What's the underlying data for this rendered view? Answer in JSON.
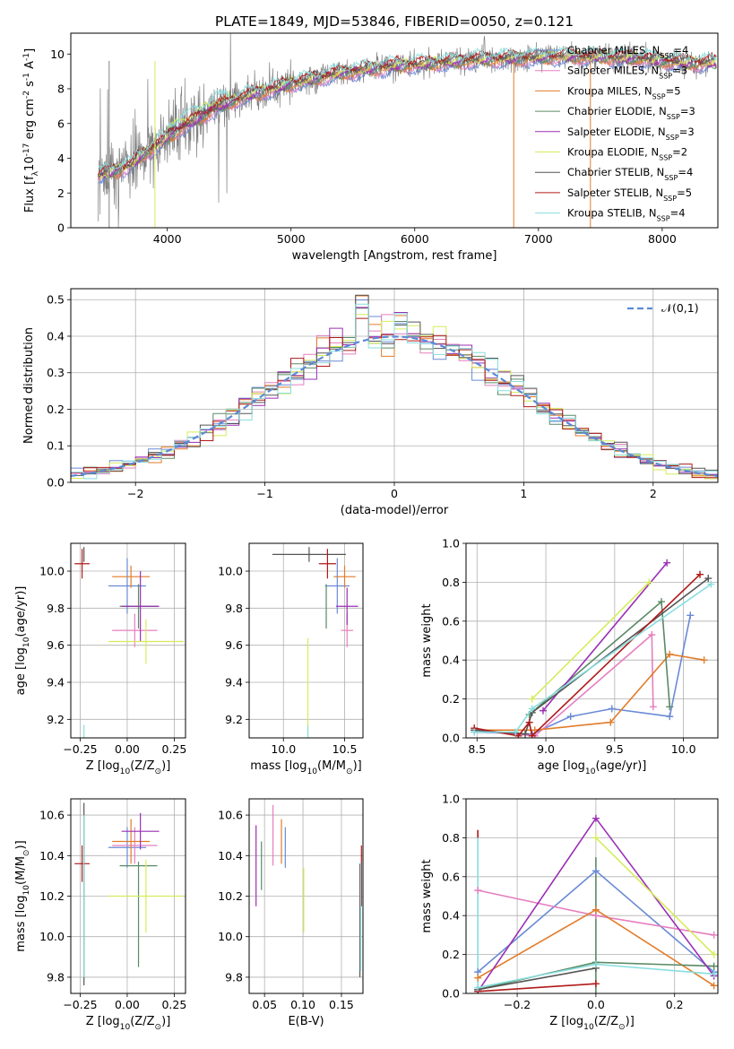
{
  "figure": {
    "title": "PLATE=1849, MJD=53846, FIBERID=0050, z=0.121"
  },
  "colors": {
    "chabrier_miles": "#6a8ad6",
    "salpeter_miles": "#e57fbf",
    "kroupa_miles": "#e27c2a",
    "chabrier_elodie": "#5a8a65",
    "salpeter_elodie": "#9a2fb4",
    "kroupa_elodie": "#d6ec5a",
    "chabrier_stelib": "#555555",
    "salpeter_stelib": "#b01a1a",
    "kroupa_stelib": "#88dede",
    "spectrum": "#808080",
    "gaussian": "#5b8ad6",
    "grid": "#b0b0b0"
  },
  "chart_data": [
    {
      "id": "spectrum",
      "type": "line",
      "xlabel": "wavelength [Angstrom, rest frame]",
      "ylabel": "Flux [f$_\\lambda$10$^{-17}$ erg cm$^{-2}$ s$^{-1}$ A$^{-1}$]",
      "xlim": [
        3220,
        8450
      ],
      "ylim": [
        0,
        11.2
      ],
      "xticks": [
        4000,
        5000,
        6000,
        7000,
        8000
      ],
      "yticks": [
        0,
        2,
        4,
        6,
        8,
        10
      ],
      "grid": false,
      "legend_position": "right",
      "continuum": {
        "x": [
          3440,
          3500,
          3600,
          3700,
          3800,
          3900,
          4000,
          4100,
          4200,
          4300,
          4400,
          4500,
          4600,
          4700,
          4800,
          4900,
          5000,
          5200,
          5400,
          5600,
          5800,
          6000,
          6200,
          6400,
          6600,
          6800,
          7000,
          7200,
          7400,
          7600,
          7800,
          8000,
          8200,
          8450
        ],
        "y": [
          3.0,
          3.1,
          3.3,
          3.6,
          4.2,
          4.7,
          5.2,
          5.7,
          6.1,
          6.5,
          6.9,
          7.2,
          7.5,
          7.7,
          7.9,
          8.1,
          8.3,
          8.6,
          8.9,
          9.1,
          9.3,
          9.4,
          9.5,
          9.6,
          9.7,
          9.75,
          9.8,
          9.85,
          9.85,
          9.8,
          9.75,
          9.6,
          9.5,
          9.5
        ]
      },
      "legend": [
        {
          "label": "Chabrier MILES, N$_{SSP}$=4",
          "color_key": "chabrier_miles"
        },
        {
          "label": "Salpeter MILES, N$_{SSP}$=3",
          "color_key": "salpeter_miles"
        },
        {
          "label": "Kroupa MILES, N$_{SSP}$=5",
          "color_key": "kroupa_miles"
        },
        {
          "label": "Chabrier ELODIE, N$_{SSP}$=3",
          "color_key": "chabrier_elodie"
        },
        {
          "label": "Salpeter ELODIE, N$_{SSP}$=3",
          "color_key": "salpeter_elodie"
        },
        {
          "label": "Kroupa ELODIE, N$_{SSP}$=2",
          "color_key": "kroupa_elodie"
        },
        {
          "label": "Chabrier STELIB, N$_{SSP}$=4",
          "color_key": "chabrier_stelib"
        },
        {
          "label": "Salpeter STELIB, N$_{SSP}$=5",
          "color_key": "salpeter_stelib"
        },
        {
          "label": "Kroupa STELIB, N$_{SSP}$=4",
          "color_key": "kroupa_stelib"
        }
      ]
    },
    {
      "id": "residuals",
      "type": "line",
      "xlabel": "(data-model)/error",
      "ylabel": "Normed distribution",
      "xlim": [
        -2.5,
        2.5
      ],
      "ylim": [
        0,
        0.53
      ],
      "xticks": [
        -2,
        -1,
        0,
        1,
        2
      ],
      "yticks": [
        0.0,
        0.1,
        0.2,
        0.3,
        0.4,
        0.5
      ],
      "grid": true,
      "legend_position": "top-right",
      "gaussian_label": "$\\mathcal{N}(0,1)$",
      "bin_edges_start": -2.5,
      "bin_width": 0.1
    },
    {
      "id": "age_vs_z",
      "type": "scatter",
      "xlabel": "Z [log$_{10}$(Z/Z$_\\odot$)]",
      "ylabel": "age  [log$_{10}$(age/yr)]",
      "xlim": [
        -0.3,
        0.31
      ],
      "ylim": [
        9.1,
        10.15
      ],
      "xticks": [
        -0.25,
        0.0,
        0.25
      ],
      "yticks": [
        9.2,
        9.4,
        9.6,
        9.8,
        10.0
      ],
      "grid": true,
      "points": [
        {
          "color_key": "chabrier_miles",
          "x": 0.0,
          "y": 9.92,
          "xerr": 0.1,
          "yerr": 0.15
        },
        {
          "color_key": "salpeter_miles",
          "x": 0.04,
          "y": 9.68,
          "xerr": 0.12,
          "yerr": 0.09
        },
        {
          "color_key": "kroupa_miles",
          "x": 0.02,
          "y": 9.97,
          "xerr": 0.1,
          "yerr": 0.06
        },
        {
          "color_key": "chabrier_elodie",
          "x": 0.06,
          "y": 9.81,
          "xerr": 0.1,
          "yerr": 0.12
        },
        {
          "color_key": "salpeter_elodie",
          "x": 0.07,
          "y": 9.81,
          "xerr": 0.1,
          "yerr": 0.19
        },
        {
          "color_key": "kroupa_elodie",
          "x": 0.1,
          "y": 9.62,
          "xerr": 0.2,
          "yerr": 0.12
        },
        {
          "color_key": "chabrier_stelib",
          "x": -0.23,
          "y": 10.09,
          "xerr": 0.0,
          "yerr": 0.04
        },
        {
          "color_key": "salpeter_stelib",
          "x": -0.24,
          "y": 10.04,
          "xerr": 0.04,
          "yerr": 0.08
        },
        {
          "color_key": "kroupa_stelib",
          "x": -0.23,
          "y": 9.15,
          "xerr": 0.0,
          "yerr": 0.0
        }
      ]
    },
    {
      "id": "age_vs_mass",
      "type": "scatter",
      "xlabel": "mass [log$_{10}$(M/M$_\\odot$)]",
      "ylabel": "",
      "xlim": [
        9.72,
        10.65
      ],
      "ylim": [
        9.1,
        10.15
      ],
      "xticks": [
        10.0,
        10.5
      ],
      "yticks": [
        9.2,
        9.4,
        9.6,
        9.8,
        10.0
      ],
      "grid": true,
      "points": [
        {
          "color_key": "chabrier_miles",
          "x": 10.44,
          "y": 9.92,
          "xerr": 0.1,
          "yerr": 0.15
        },
        {
          "color_key": "salpeter_miles",
          "x": 10.52,
          "y": 9.68,
          "xerr": 0.05,
          "yerr": 0.09
        },
        {
          "color_key": "kroupa_miles",
          "x": 10.5,
          "y": 9.97,
          "xerr": 0.09,
          "yerr": 0.06
        },
        {
          "color_key": "chabrier_elodie",
          "x": 10.35,
          "y": 9.81,
          "xerr": 0.0,
          "yerr": 0.12
        },
        {
          "color_key": "salpeter_elodie",
          "x": 10.52,
          "y": 9.81,
          "xerr": 0.09,
          "yerr": 0.1
        },
        {
          "color_key": "kroupa_elodie",
          "x": 10.2,
          "y": 9.62,
          "xerr": 0.0,
          "yerr": 0.0
        },
        {
          "color_key": "chabrier_stelib",
          "x": 10.21,
          "y": 10.09,
          "xerr": 0.3,
          "yerr": 0.04
        },
        {
          "color_key": "salpeter_stelib",
          "x": 10.36,
          "y": 10.04,
          "xerr": 0.07,
          "yerr": 0.08
        },
        {
          "color_key": "kroupa_stelib",
          "x": 10.2,
          "y": 9.15,
          "xerr": 0.0,
          "yerr": 0.0
        }
      ]
    },
    {
      "id": "weight_vs_age",
      "type": "line",
      "xlabel": "age  [log$_{10}$(age/yr)]",
      "ylabel": "mass weight",
      "xlim": [
        8.42,
        10.25
      ],
      "ylim": [
        0,
        1.0
      ],
      "xticks": [
        8.5,
        9.0,
        9.5,
        10.0
      ],
      "yticks": [
        0.0,
        0.2,
        0.4,
        0.6,
        0.8,
        1.0
      ],
      "grid": true,
      "series": [
        {
          "color_key": "chabrier_miles",
          "x": [
            8.48,
            8.9,
            9.18,
            9.48,
            9.9,
            10.05
          ],
          "y": [
            0.03,
            0.02,
            0.11,
            0.15,
            0.11,
            0.63
          ]
        },
        {
          "color_key": "salpeter_miles",
          "x": [
            8.48,
            8.92,
            9.77,
            9.78
          ],
          "y": [
            0.04,
            0.01,
            0.53,
            0.16
          ]
        },
        {
          "color_key": "kroupa_miles",
          "x": [
            8.48,
            8.92,
            9.47,
            9.9,
            10.15
          ],
          "y": [
            0.04,
            0.04,
            0.08,
            0.43,
            0.4
          ]
        },
        {
          "color_key": "chabrier_elodie",
          "x": [
            8.88,
            9.84,
            9.9
          ],
          "y": [
            0.12,
            0.7,
            0.16
          ]
        },
        {
          "color_key": "salpeter_elodie",
          "x": [
            8.98,
            9.88
          ],
          "y": [
            0.14,
            0.9
          ]
        },
        {
          "color_key": "kroupa_elodie",
          "x": [
            8.9,
            9.75
          ],
          "y": [
            0.2,
            0.8
          ]
        },
        {
          "color_key": "chabrier_stelib",
          "x": [
            8.48,
            8.85,
            8.9,
            10.18
          ],
          "y": [
            0.04,
            0.02,
            0.13,
            0.82
          ]
        },
        {
          "color_key": "salpeter_stelib",
          "x": [
            8.48,
            8.8,
            8.88,
            8.9,
            10.12
          ],
          "y": [
            0.05,
            0.01,
            0.08,
            0.01,
            0.84
          ]
        },
        {
          "color_key": "kroupa_stelib",
          "x": [
            8.48,
            8.78,
            8.9,
            10.2
          ],
          "y": [
            0.03,
            0.03,
            0.15,
            0.79
          ]
        }
      ]
    },
    {
      "id": "mass_vs_z",
      "type": "scatter",
      "xlabel": "Z [log$_{10}$(Z/Z$_\\odot$)]",
      "ylabel": "mass [log$_{10}$(M/M$_\\odot$)]",
      "xlim": [
        -0.3,
        0.31
      ],
      "ylim": [
        9.72,
        10.68
      ],
      "xticks": [
        -0.25,
        0.0,
        0.25
      ],
      "yticks": [
        9.8,
        10.0,
        10.2,
        10.4,
        10.6
      ],
      "grid": true,
      "points": [
        {
          "color_key": "chabrier_miles",
          "x": 0.0,
          "y": 10.44,
          "xerr": 0.1,
          "yerr": 0.1
        },
        {
          "color_key": "salpeter_miles",
          "x": 0.04,
          "y": 10.45,
          "xerr": 0.12,
          "yerr": 0.09
        },
        {
          "color_key": "kroupa_miles",
          "x": 0.02,
          "y": 10.47,
          "xerr": 0.1,
          "yerr": 0.11
        },
        {
          "color_key": "chabrier_elodie",
          "x": 0.06,
          "y": 10.35,
          "xerr": 0.1,
          "yerr": 0.0
        },
        {
          "color_key": "salpeter_elodie",
          "x": 0.07,
          "y": 10.52,
          "xerr": 0.1,
          "yerr": 0.09
        },
        {
          "color_key": "kroupa_elodie",
          "x": 0.1,
          "y": 10.2,
          "xerr": 0.2,
          "yerr": 0.18
        },
        {
          "color_key": "chabrier_stelib",
          "x": -0.23,
          "y": 10.21,
          "xerr": 0.0,
          "yerr": 0.45
        },
        {
          "color_key": "salpeter_stelib",
          "x": -0.24,
          "y": 10.36,
          "xerr": 0.04,
          "yerr": 0.09
        },
        {
          "color_key": "kroupa_stelib",
          "x": -0.23,
          "y": 10.2,
          "xerr": 0.0,
          "yerr": 0.4
        }
      ]
    },
    {
      "id": "mass_vs_ebv",
      "type": "scatter",
      "xlabel": "E(B-V)",
      "ylabel": "",
      "xlim": [
        0.03,
        0.178
      ],
      "ylim": [
        9.72,
        10.68
      ],
      "xticks": [
        0.05,
        0.1,
        0.15
      ],
      "yticks": [
        9.8,
        10.0,
        10.2,
        10.4,
        10.6
      ],
      "grid": true,
      "points": [
        {
          "color_key": "chabrier_miles",
          "x": 0.077,
          "y": 10.44,
          "xerr": 0.0,
          "yerr": 0.1
        },
        {
          "color_key": "salpeter_miles",
          "x": 0.061,
          "y": 10.5,
          "xerr": 0.0,
          "yerr": 0.15
        },
        {
          "color_key": "kroupa_miles",
          "x": 0.072,
          "y": 10.47,
          "xerr": 0.0,
          "yerr": 0.11
        },
        {
          "color_key": "chabrier_elodie",
          "x": 0.046,
          "y": 10.35,
          "xerr": 0.0,
          "yerr": 0.12
        },
        {
          "color_key": "salpeter_elodie",
          "x": 0.039,
          "y": 10.35,
          "xerr": 0.0,
          "yerr": 0.2
        },
        {
          "color_key": "kroupa_elodie",
          "x": 0.101,
          "y": 10.18,
          "xerr": 0.0,
          "yerr": 0.16
        },
        {
          "color_key": "chabrier_stelib",
          "x": 0.174,
          "y": 10.08,
          "xerr": 0.0,
          "yerr": 0.28
        },
        {
          "color_key": "salpeter_stelib",
          "x": 0.176,
          "y": 10.3,
          "xerr": 0.0,
          "yerr": 0.15
        },
        {
          "color_key": "kroupa_stelib",
          "x": 0.175,
          "y": 10.1,
          "xerr": 0.0,
          "yerr": 0.27
        }
      ]
    },
    {
      "id": "weight_vs_z",
      "type": "line",
      "xlabel": "Z [log$_{10}$(Z/Z$_\\odot$)]",
      "ylabel": "mass weight",
      "xlim": [
        -0.33,
        0.31
      ],
      "ylim": [
        0,
        1.0
      ],
      "xticks": [
        -0.2,
        0.0,
        0.2
      ],
      "yticks": [
        0.0,
        0.2,
        0.4,
        0.6,
        0.8,
        1.0
      ],
      "grid": true,
      "series": [
        {
          "color_key": "chabrier_miles",
          "x": [
            -0.3,
            0.0,
            0.3
          ],
          "y": [
            0.11,
            0.63,
            0.11
          ]
        },
        {
          "color_key": "salpeter_miles",
          "x": [
            -0.3,
            0.0,
            0.3
          ],
          "y": [
            0.53,
            0.4,
            0.3
          ]
        },
        {
          "color_key": "kroupa_miles",
          "x": [
            -0.3,
            0.0,
            0.3
          ],
          "y": [
            0.08,
            0.43,
            0.04
          ]
        },
        {
          "color_key": "chabrier_elodie",
          "x": [
            -0.3,
            0.0,
            0.3
          ],
          "y": [
            0.02,
            0.16,
            0.14
          ]
        },
        {
          "color_key": "salpeter_elodie",
          "x": [
            -0.3,
            0.0,
            0.3
          ],
          "y": [
            0.01,
            0.9,
            0.09
          ]
        },
        {
          "color_key": "kroupa_elodie",
          "x": [
            0.0,
            0.3
          ],
          "y": [
            0.8,
            0.2
          ]
        },
        {
          "color_key": "chabrier_stelib",
          "x": [
            -0.3,
            0.0
          ],
          "y": [
            0.02,
            0.13
          ]
        },
        {
          "color_key": "salpeter_stelib",
          "x": [
            -0.3,
            0.0
          ],
          "y": [
            0.01,
            0.05
          ]
        },
        {
          "color_key": "kroupa_stelib",
          "x": [
            -0.3,
            0.0,
            0.3
          ],
          "y": [
            0.03,
            0.15,
            0.1
          ]
        }
      ],
      "vertical_lines": [
        {
          "color_key": "kroupa_stelib",
          "x": -0.3,
          "y": [
            0.0,
            0.8
          ]
        },
        {
          "color_key": "salpeter_stelib",
          "x": -0.3,
          "y": [
            0.8,
            0.84
          ]
        },
        {
          "color_key": "chabrier_elodie",
          "x": 0.0,
          "y": [
            0.0,
            0.7
          ]
        }
      ]
    }
  ]
}
